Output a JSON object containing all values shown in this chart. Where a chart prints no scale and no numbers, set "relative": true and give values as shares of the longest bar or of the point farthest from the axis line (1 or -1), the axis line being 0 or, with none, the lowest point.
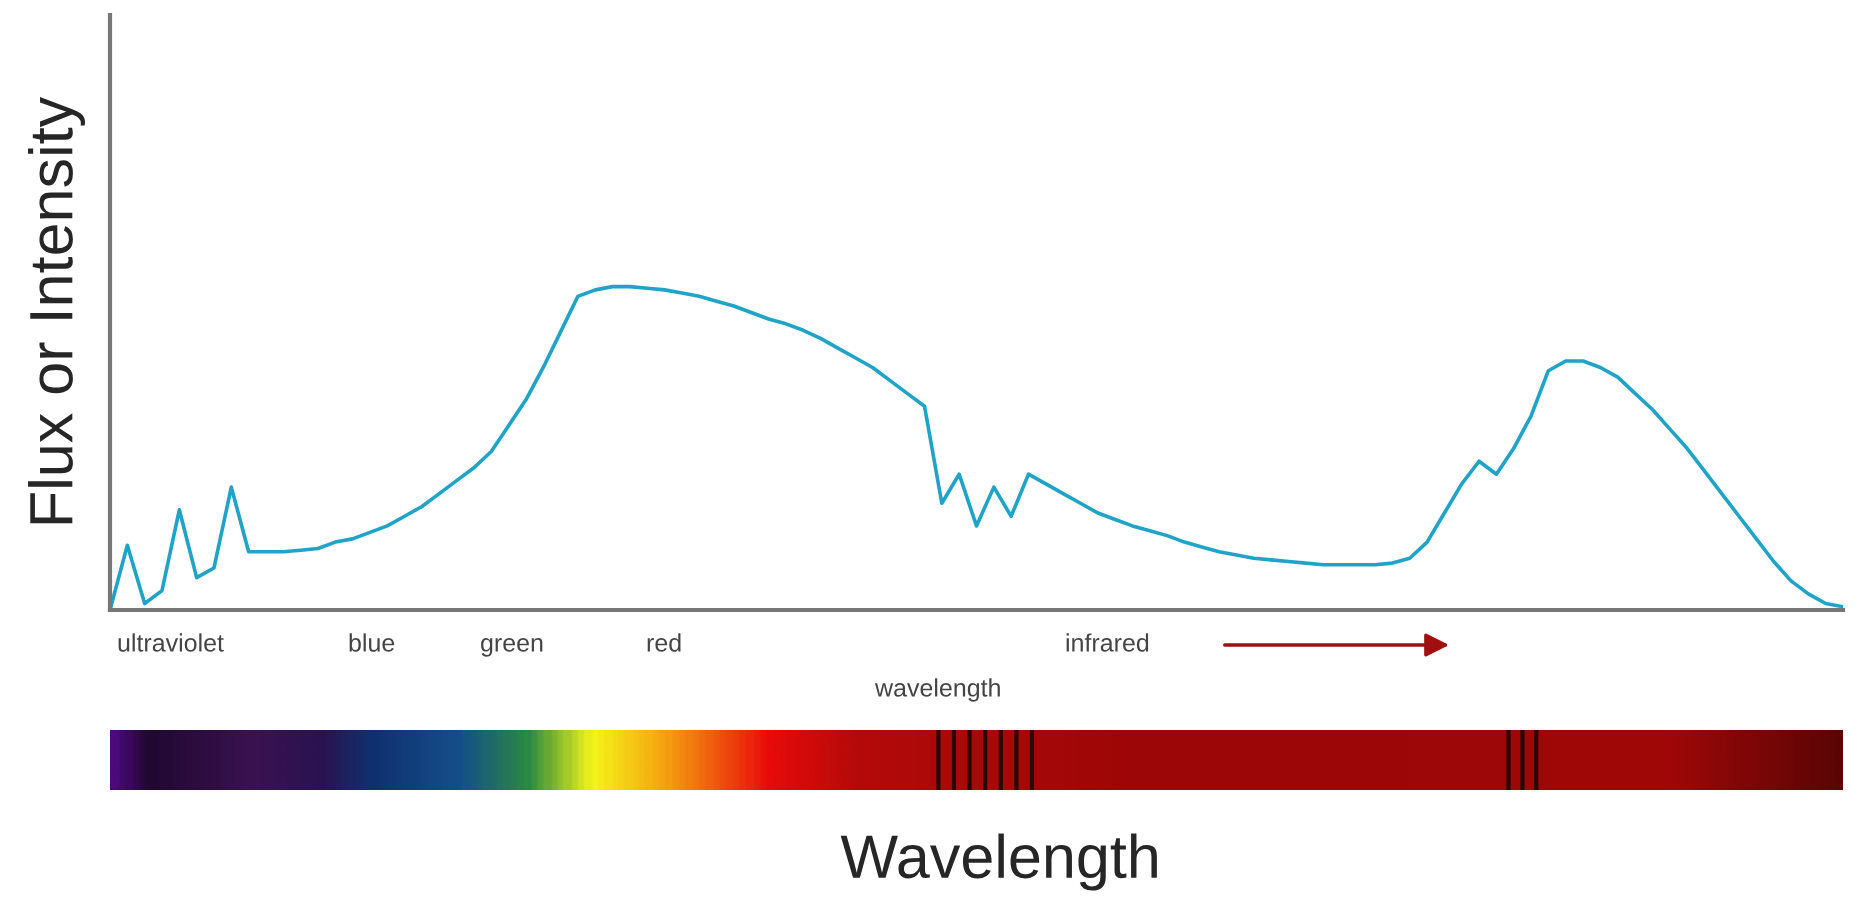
{
  "chart_data": {
    "type": "line",
    "relative": true,
    "xlabel": "Wavelength",
    "ylabel": "Flux or Intensity",
    "annotations": [
      "ultraviolet",
      "blue",
      "green",
      "red",
      "infrared",
      "wavelength"
    ],
    "categories": [
      null,
      null,
      null,
      null,
      null,
      null,
      null,
      null,
      null,
      null,
      null,
      null,
      null,
      null,
      null,
      null,
      null,
      null,
      null,
      null,
      null,
      null,
      null,
      null,
      null,
      null,
      null,
      null,
      null,
      null,
      null,
      null,
      null,
      null,
      null,
      null,
      null,
      null,
      null,
      null,
      null,
      null,
      null,
      null,
      null,
      null,
      null,
      null,
      null,
      null,
      null,
      null,
      null,
      null,
      null,
      null,
      null,
      null,
      null,
      null,
      null,
      null,
      null,
      null,
      null,
      null,
      null,
      null,
      null,
      null,
      null,
      null,
      null,
      null,
      null,
      null,
      null,
      null,
      null,
      null,
      null,
      null,
      null,
      null,
      null,
      null,
      null,
      null,
      null,
      null,
      null,
      null,
      null,
      null,
      null,
      null,
      null,
      null,
      null,
      null,
      null
    ],
    "color": "#1fa3c6",
    "values": [
      0.0,
      0.2,
      0.02,
      0.06,
      0.31,
      0.1,
      0.13,
      0.38,
      0.18,
      0.18,
      0.18,
      0.185,
      0.19,
      0.21,
      0.22,
      0.24,
      0.26,
      0.29,
      0.32,
      0.36,
      0.4,
      0.44,
      0.49,
      0.57,
      0.65,
      0.75,
      0.86,
      0.97,
      0.99,
      1.0,
      1.0,
      0.995,
      0.99,
      0.98,
      0.97,
      0.955,
      0.94,
      0.92,
      0.9,
      0.885,
      0.865,
      0.84,
      0.81,
      0.78,
      0.75,
      0.71,
      0.67,
      0.63,
      0.33,
      0.42,
      0.26,
      0.38,
      0.29,
      0.42,
      0.39,
      0.36,
      0.33,
      0.3,
      0.28,
      0.26,
      0.245,
      0.23,
      0.21,
      0.195,
      0.18,
      0.17,
      0.16,
      0.155,
      0.15,
      0.145,
      0.14,
      0.14,
      0.14,
      0.14,
      0.145,
      0.16,
      0.21,
      0.3,
      0.39,
      0.46,
      0.42,
      0.5,
      0.6,
      0.74,
      0.77,
      0.77,
      0.75,
      0.72,
      0.67,
      0.62,
      0.56,
      0.5,
      0.43,
      0.36,
      0.29,
      0.22,
      0.15,
      0.09,
      0.05,
      0.02,
      0.01
    ]
  }
}
